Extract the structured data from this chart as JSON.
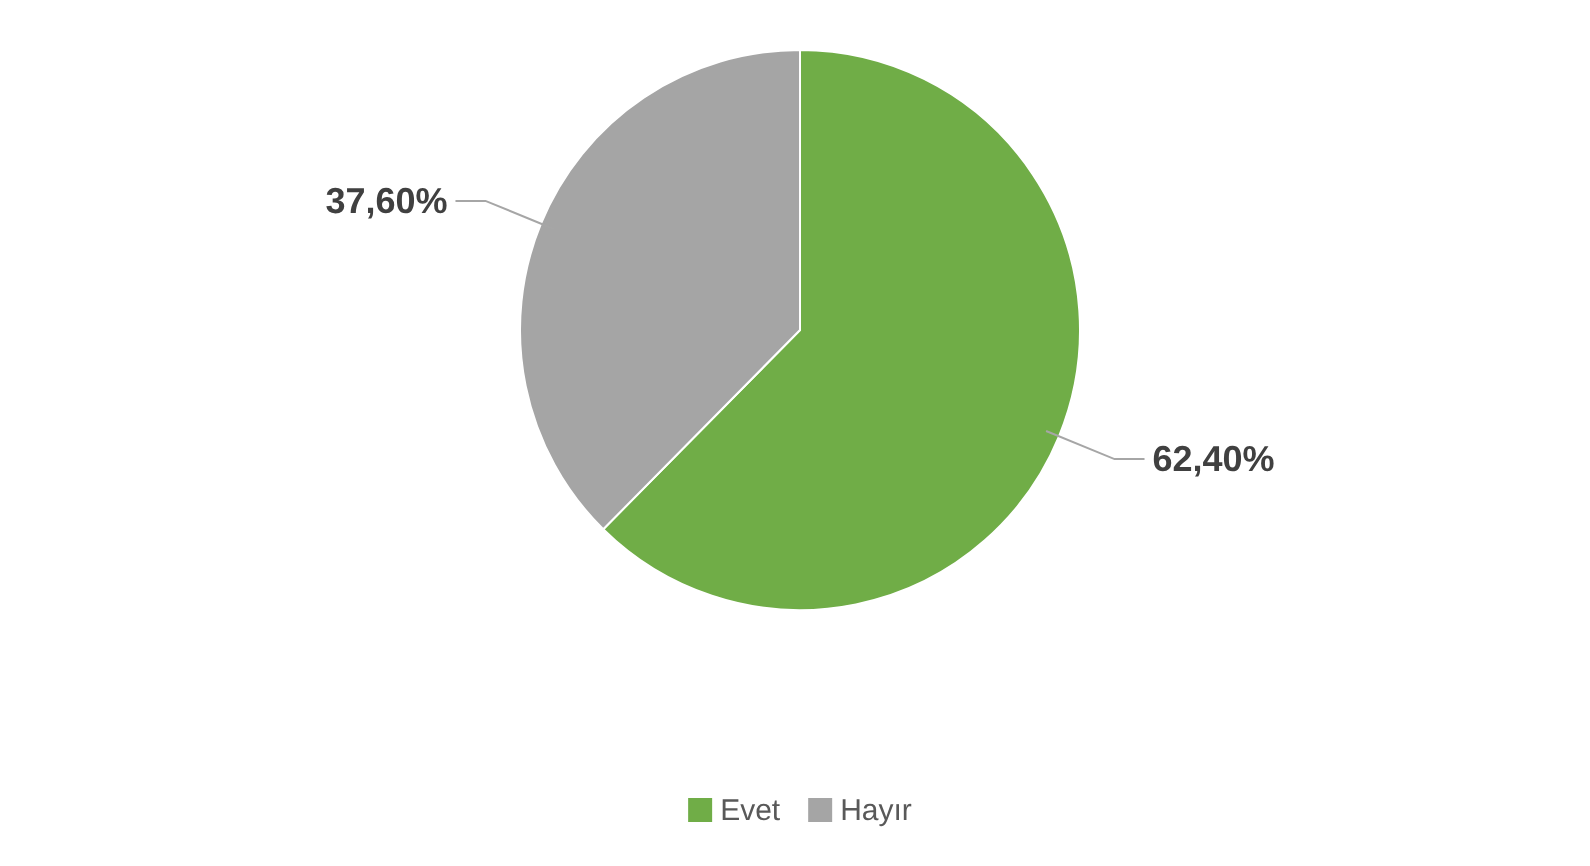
{
  "chart_data": {
    "type": "pie",
    "categories": [
      "Evet",
      "Hayır"
    ],
    "values": [
      62.4,
      37.6
    ],
    "value_labels": [
      "62,40%",
      "37,60%"
    ],
    "colors": [
      "#70ad47",
      "#a5a5a5"
    ],
    "legend": "bottom"
  }
}
